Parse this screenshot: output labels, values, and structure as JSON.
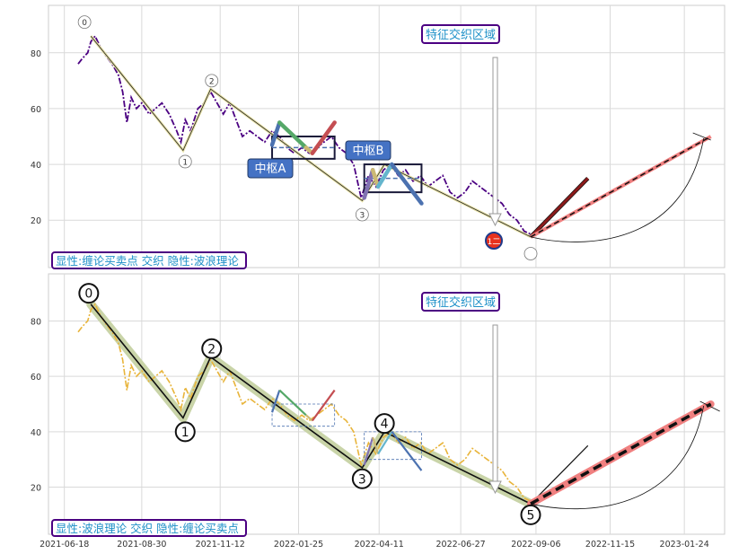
{
  "chart_data": [
    {
      "type": "line",
      "title": "",
      "ylim": [
        3,
        97
      ],
      "xlim": [
        "2021-06-03",
        "2023-03-03"
      ],
      "grid": true,
      "yticks": [
        20,
        40,
        60,
        80
      ],
      "price_series": {
        "color": "#4b0082",
        "style": "dash-dot",
        "points": [
          [
            "2021-07-01",
            76
          ],
          [
            "2021-07-05",
            78
          ],
          [
            "2021-07-10",
            80
          ],
          [
            "2021-07-13",
            84
          ],
          [
            "2021-07-17",
            86
          ],
          [
            "2021-07-22",
            82
          ],
          [
            "2021-07-27",
            79
          ],
          [
            "2021-08-02",
            76
          ],
          [
            "2021-08-08",
            72
          ],
          [
            "2021-08-12",
            66
          ],
          [
            "2021-08-16",
            55
          ],
          [
            "2021-08-20",
            64
          ],
          [
            "2021-08-25",
            60
          ],
          [
            "2021-08-30",
            62
          ],
          [
            "2021-09-06",
            58
          ],
          [
            "2021-09-12",
            60
          ],
          [
            "2021-09-18",
            62
          ],
          [
            "2021-09-25",
            58
          ],
          [
            "2021-10-02",
            52
          ],
          [
            "2021-10-06",
            48
          ],
          [
            "2021-10-10",
            56
          ],
          [
            "2021-10-15",
            52
          ],
          [
            "2021-10-22",
            60
          ],
          [
            "2021-10-28",
            62
          ],
          [
            "2021-11-03",
            66
          ],
          [
            "2021-11-09",
            62
          ],
          [
            "2021-11-15",
            58
          ],
          [
            "2021-11-21",
            62
          ],
          [
            "2021-11-27",
            56
          ],
          [
            "2021-12-03",
            50
          ],
          [
            "2021-12-10",
            52
          ],
          [
            "2021-12-17",
            50
          ],
          [
            "2021-12-24",
            48
          ],
          [
            "2021-12-31",
            52
          ],
          [
            "2022-01-07",
            50
          ],
          [
            "2022-01-14",
            46
          ],
          [
            "2022-01-21",
            44
          ],
          [
            "2022-01-28",
            46
          ],
          [
            "2022-02-04",
            44
          ],
          [
            "2022-02-11",
            46
          ],
          [
            "2022-02-18",
            48
          ],
          [
            "2022-02-25",
            50
          ],
          [
            "2022-03-04",
            46
          ],
          [
            "2022-03-11",
            44
          ],
          [
            "2022-03-18",
            40
          ],
          [
            "2022-03-25",
            28
          ],
          [
            "2022-04-01",
            36
          ],
          [
            "2022-04-08",
            32
          ],
          [
            "2022-04-15",
            38
          ],
          [
            "2022-04-22",
            40
          ],
          [
            "2022-04-29",
            36
          ],
          [
            "2022-05-06",
            38
          ],
          [
            "2022-05-13",
            34
          ],
          [
            "2022-05-20",
            36
          ],
          [
            "2022-05-27",
            32
          ],
          [
            "2022-06-03",
            34
          ],
          [
            "2022-06-10",
            36
          ],
          [
            "2022-06-17",
            30
          ],
          [
            "2022-06-24",
            28
          ],
          [
            "2022-07-01",
            30
          ],
          [
            "2022-07-08",
            34
          ],
          [
            "2022-07-15",
            32
          ],
          [
            "2022-07-22",
            30
          ],
          [
            "2022-07-29",
            28
          ],
          [
            "2022-08-05",
            26
          ],
          [
            "2022-08-12",
            22
          ],
          [
            "2022-08-19",
            20
          ],
          [
            "2022-08-26",
            16
          ],
          [
            "2022-09-01",
            15
          ]
        ]
      },
      "stroke_path": [
        [
          "2021-07-13",
          86
        ],
        [
          "2021-10-08",
          45
        ],
        [
          "2021-11-03",
          67
        ],
        [
          "2022-03-26",
          27
        ],
        [
          "2022-04-16",
          40
        ],
        [
          "2022-09-01",
          14
        ]
      ],
      "wave_labels": [
        {
          "label": "0",
          "x": "2021-07-07",
          "y": 91
        },
        {
          "label": "1",
          "x": "2021-10-10",
          "y": 41
        },
        {
          "label": "2",
          "x": "2021-11-04",
          "y": 70
        },
        {
          "label": "3",
          "x": "2022-03-26",
          "y": 22
        },
        {
          "label": "",
          "x": "2022-09-01",
          "y": 8
        }
      ],
      "pivot_zones": [
        {
          "label": "中枢A",
          "x0": "2021-12-31",
          "x1": "2022-02-28",
          "y0": 42,
          "y1": 50
        },
        {
          "label": "中枢B",
          "x0": "2022-03-28",
          "x1": "2022-05-21",
          "y0": 30,
          "y1": 40
        }
      ],
      "segments": [
        {
          "x0": "2021-12-31",
          "y0": 47,
          "x1": "2022-01-07",
          "y1": 55,
          "color": "#4c72b0"
        },
        {
          "x0": "2022-01-07",
          "y0": 55,
          "x1": "2022-02-01",
          "y1": 46,
          "color": "#55a868"
        },
        {
          "x0": "2022-02-01",
          "y0": 46,
          "x1": "2022-02-07",
          "y1": 44,
          "color": "#ccb974"
        },
        {
          "x0": "2022-02-07",
          "y0": 44,
          "x1": "2022-02-28",
          "y1": 55,
          "color": "#c44e52"
        },
        {
          "x0": "2022-03-28",
          "y0": 28,
          "x1": "2022-04-05",
          "y1": 38,
          "color": "#8172b2"
        },
        {
          "x0": "2022-04-05",
          "y0": 38,
          "x1": "2022-04-10",
          "y1": 32,
          "color": "#ccb974"
        },
        {
          "x0": "2022-04-10",
          "y0": 32,
          "x1": "2022-04-23",
          "y1": 40,
          "color": "#64b5cd"
        },
        {
          "x0": "2022-04-23",
          "y0": 40,
          "x1": "2022-05-21",
          "y1": 26,
          "color": "#4c72b0"
        }
      ],
      "projections": [
        {
          "x0": "2022-09-01",
          "y0": 14,
          "x1": "2022-10-25",
          "y1": 35,
          "color": "#8b1a1a",
          "style": "solid"
        },
        {
          "x0": "2022-09-01",
          "y0": 14,
          "x1": "2023-02-18",
          "y1": 50,
          "color": "#f08080",
          "style": "dashed"
        }
      ],
      "region_label": "特征交织区域",
      "zone_labels": [
        "中枢A",
        "中枢B"
      ],
      "legend_text": "显性:缠论买卖点 交织 隐性:波浪理论",
      "marker_label": "1二"
    },
    {
      "type": "line",
      "title": "",
      "ylim": [
        3,
        97
      ],
      "xlim": [
        "2021-06-03",
        "2023-03-03"
      ],
      "grid": true,
      "yticks": [
        20,
        40,
        60,
        80
      ],
      "xticks": [
        "2021-06-18",
        "2021-08-30",
        "2021-11-12",
        "2022-01-25",
        "2022-04-11",
        "2022-06-27",
        "2022-09-06",
        "2022-11-15",
        "2023-01-24"
      ],
      "price_series": {
        "color": "#e8b43a",
        "style": "dash-dot"
      },
      "wave_path": [
        [
          "2021-07-13",
          86
        ],
        [
          "2021-10-08",
          45
        ],
        [
          "2021-11-03",
          67
        ],
        [
          "2022-03-26",
          27
        ],
        [
          "2022-04-16",
          40
        ],
        [
          "2022-09-01",
          14
        ]
      ],
      "wave_labels": [
        {
          "label": "0",
          "x": "2021-07-11",
          "y": 90
        },
        {
          "label": "1",
          "x": "2021-10-10",
          "y": 40
        },
        {
          "label": "2",
          "x": "2021-11-04",
          "y": 70
        },
        {
          "label": "3",
          "x": "2022-03-26",
          "y": 23
        },
        {
          "label": "4",
          "x": "2022-04-16",
          "y": 43
        },
        {
          "label": "5",
          "x": "2022-09-01",
          "y": 10
        }
      ],
      "region_label": "特征交织区域",
      "legend_text": "显性:波浪理论 交织 隐性:缠论买卖点"
    }
  ]
}
